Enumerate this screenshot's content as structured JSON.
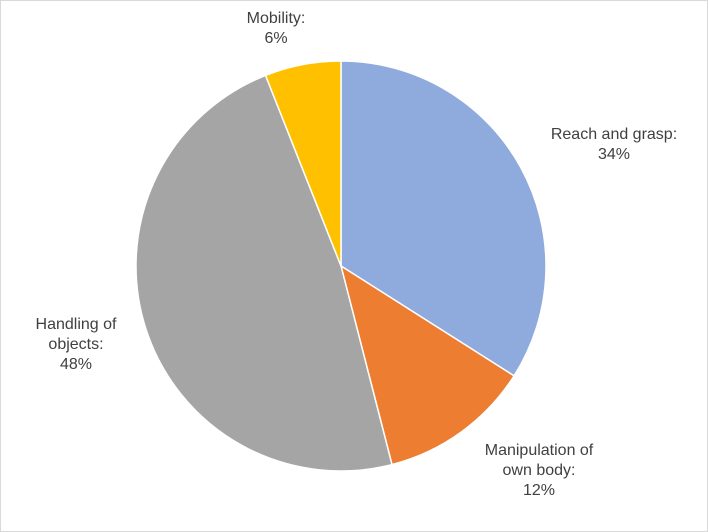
{
  "chart_data": {
    "type": "pie",
    "categories": [
      "Reach and grasp:",
      "Manipulation of own body:",
      "Handling of objects:",
      "Mobility:"
    ],
    "values": [
      34,
      12,
      48,
      6
    ],
    "value_labels": [
      "34%",
      "12%",
      "48%",
      "6%"
    ],
    "colors": [
      "#8faadc",
      "#ed7d31",
      "#a5a5a5",
      "#ffc000"
    ]
  }
}
